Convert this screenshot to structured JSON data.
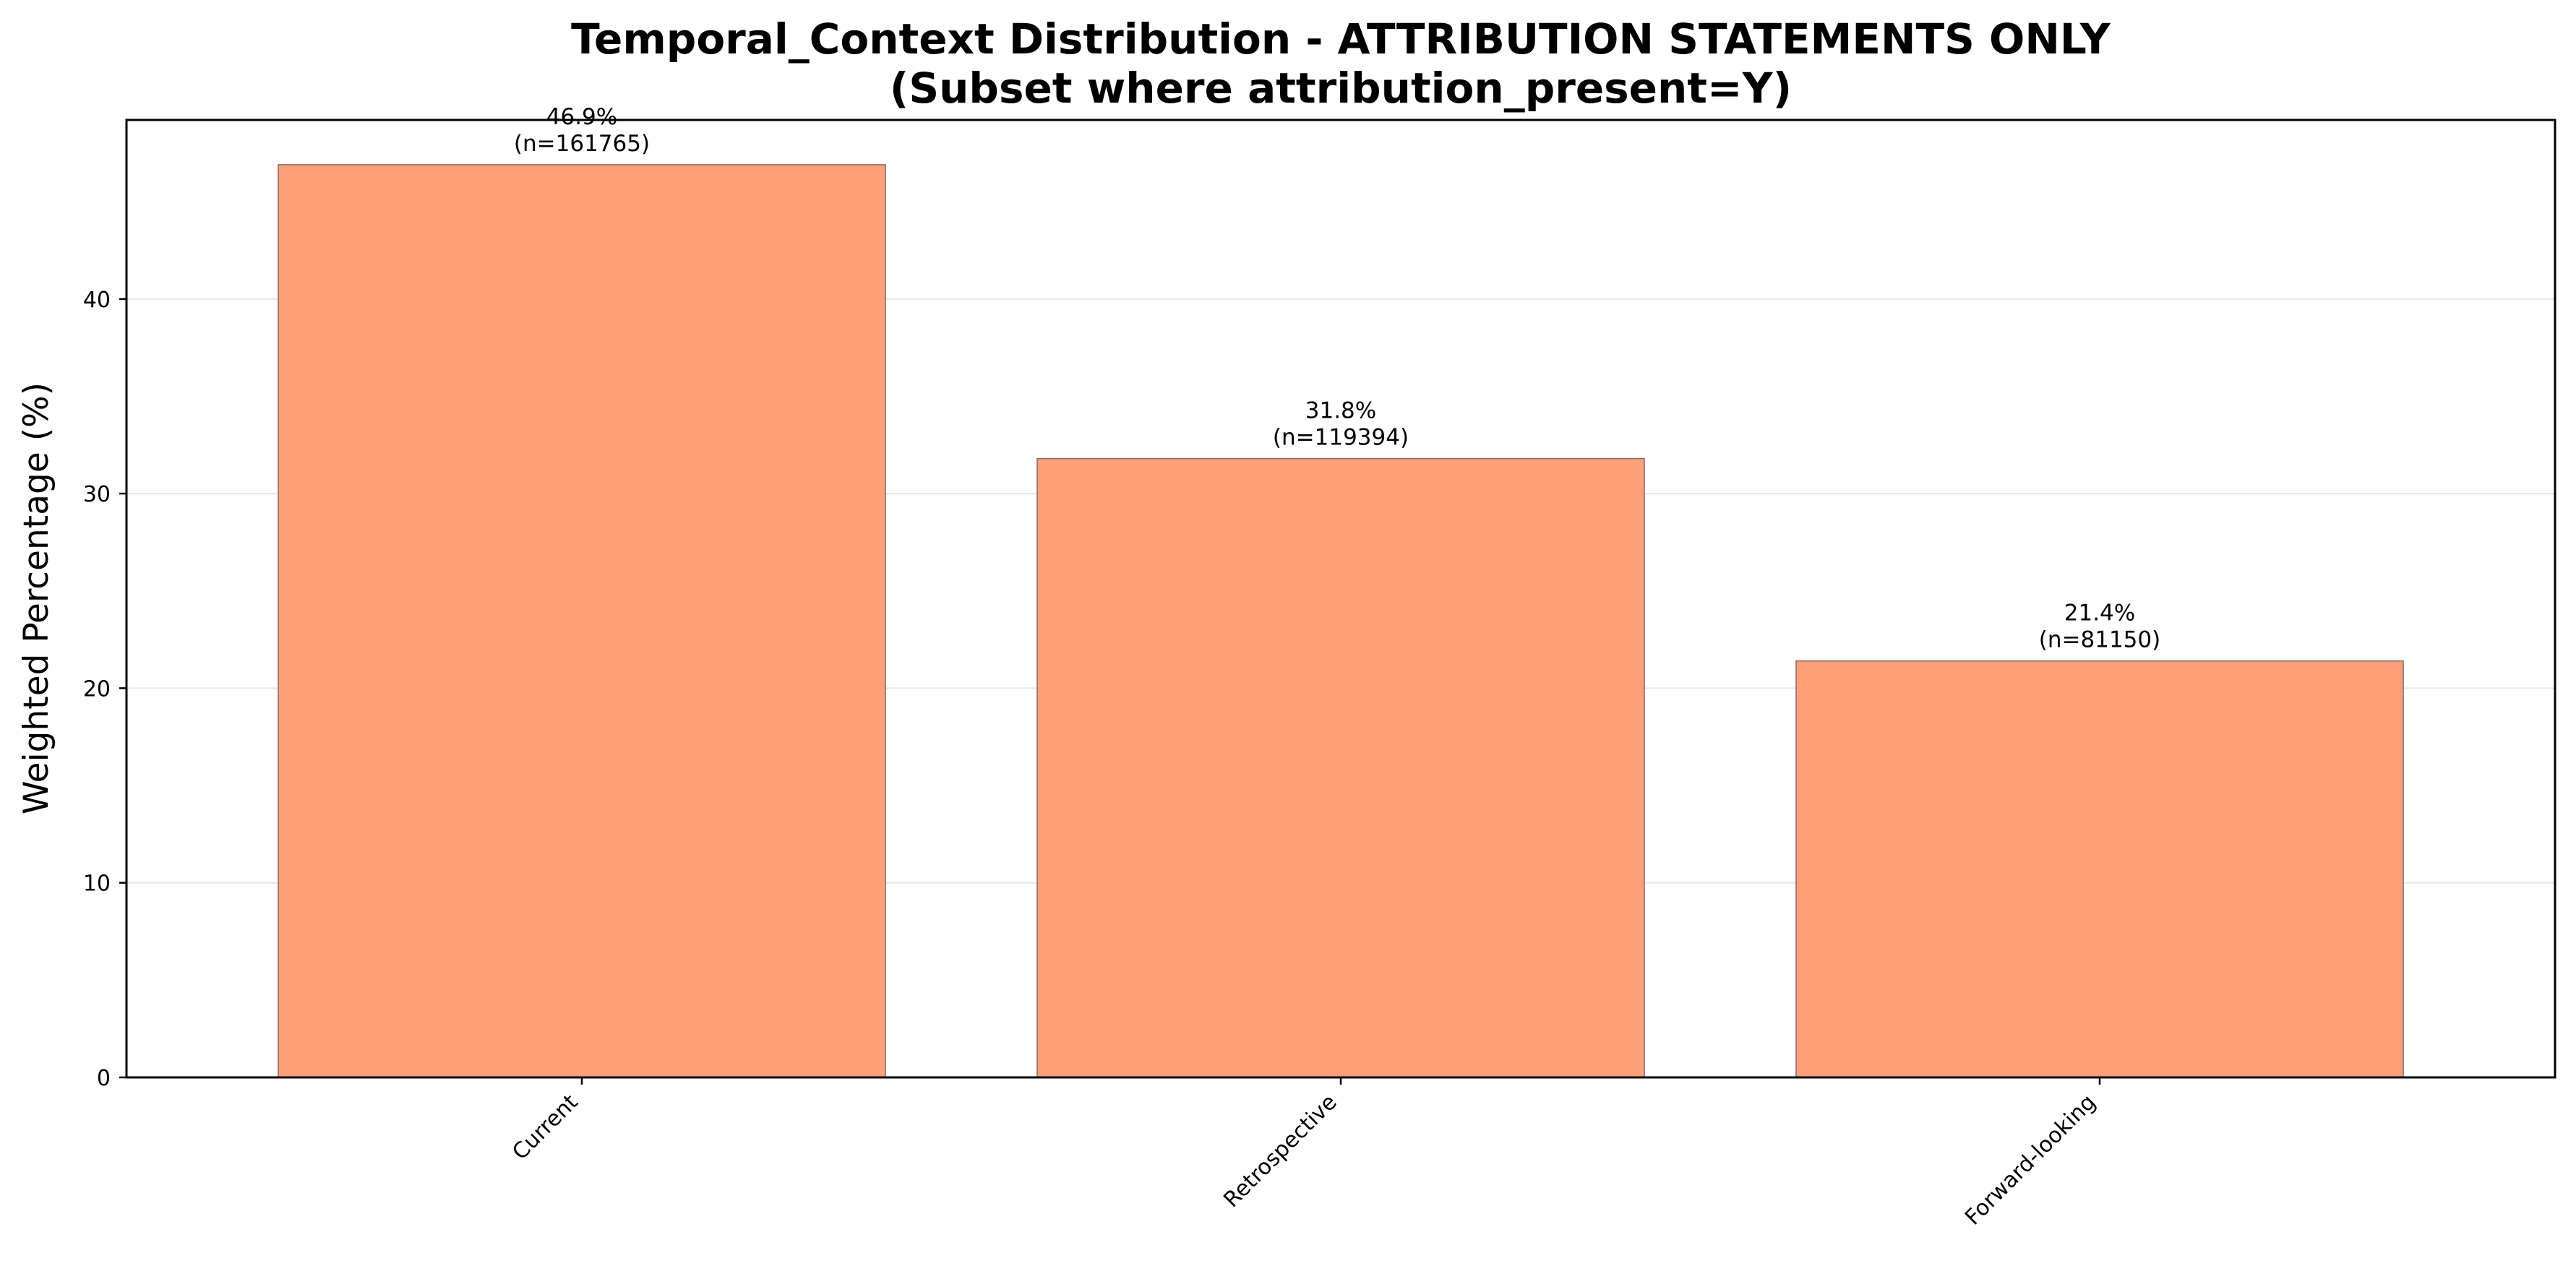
{
  "chart_data": {
    "type": "bar",
    "title": "Temporal_Context Distribution - ATTRIBUTION STATEMENTS ONLY",
    "subtitle": "(Subset where attribution_present=Y)",
    "xlabel": "",
    "ylabel": "Weighted Percentage (%)",
    "categories": [
      "Current",
      "Retrospective",
      "Forward-looking"
    ],
    "values": [
      46.9,
      31.8,
      21.4
    ],
    "value_labels": [
      "46.9%",
      "31.8%",
      "21.4%"
    ],
    "count_labels": [
      "(n=161765)",
      "(n=119394)",
      "(n=81150)"
    ],
    "ylim": [
      0,
      49.2
    ],
    "yticks": [
      0,
      10,
      20,
      30,
      40
    ],
    "grid": true,
    "bar_color": "#ffa07a",
    "bar_edge_color": "#7f6a62",
    "grid_color": "#e6e6e6"
  }
}
